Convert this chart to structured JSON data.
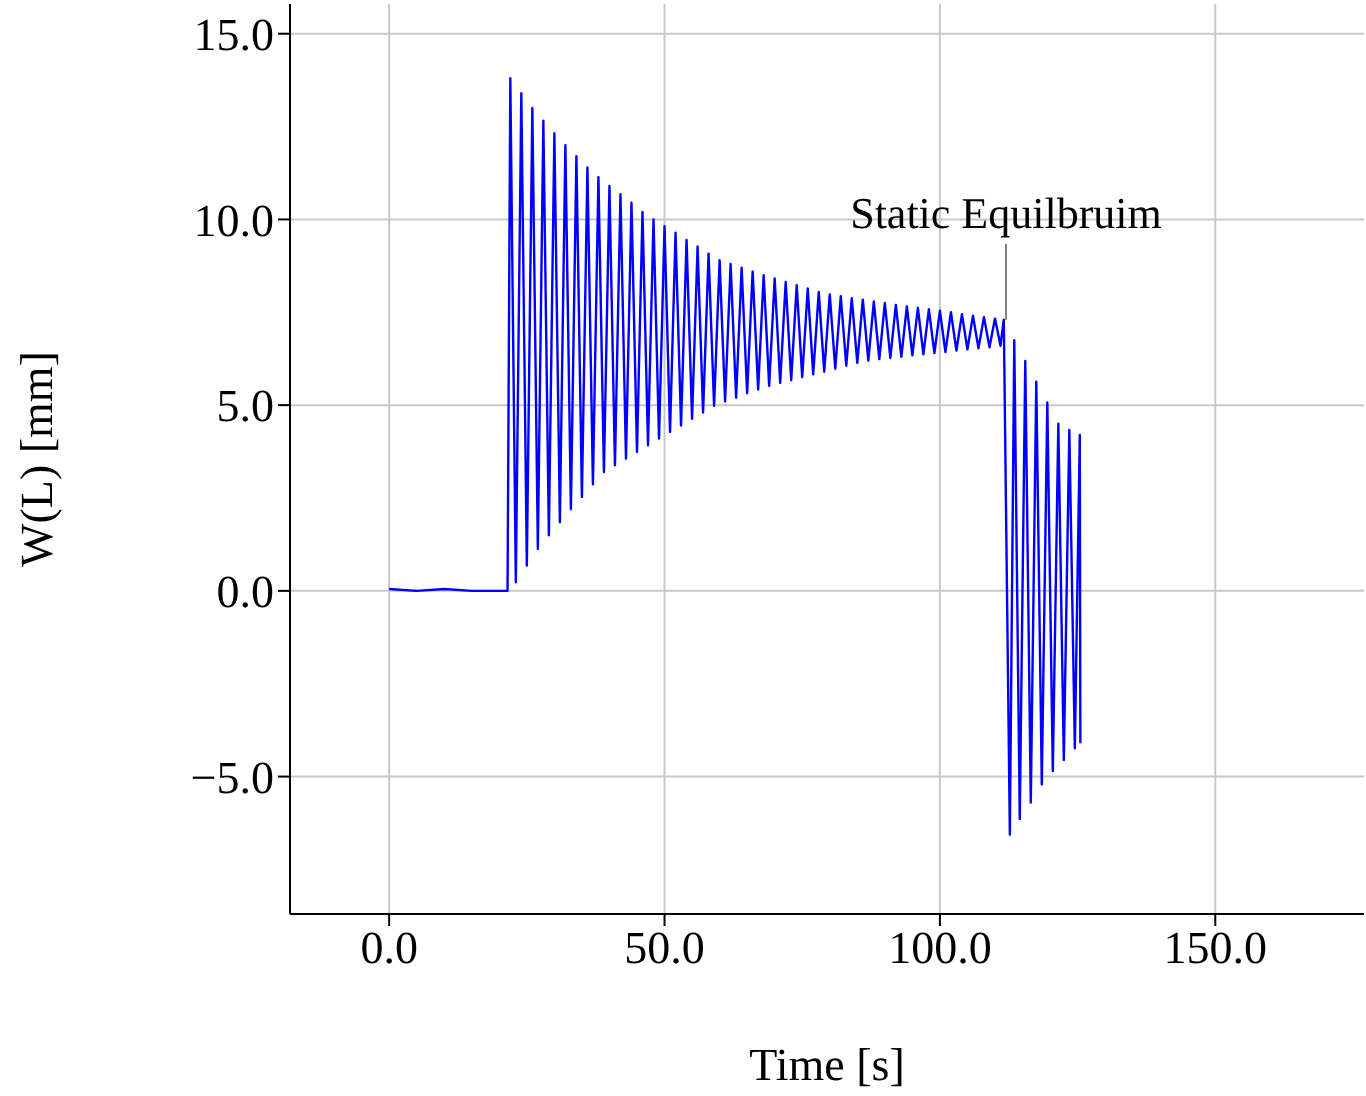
{
  "chart_data": {
    "type": "line",
    "xlabel": "Time [s]",
    "ylabel": "W(L) [mm]",
    "xlim": [
      -18,
      177
    ],
    "ylim": [
      -8.7,
      15.8
    ],
    "xticks": [
      {
        "value": 0,
        "label": "0.0"
      },
      {
        "value": 50,
        "label": "50.0"
      },
      {
        "value": 100,
        "label": "100.0"
      },
      {
        "value": 150,
        "label": "150.0"
      }
    ],
    "yticks": [
      {
        "value": -5,
        "label": "−5.0"
      },
      {
        "value": 0,
        "label": "0.0"
      },
      {
        "value": 5,
        "label": "5.0"
      },
      {
        "value": 10,
        "label": "10.0"
      },
      {
        "value": 15,
        "label": "15.0"
      }
    ],
    "grid": true,
    "marker": "none",
    "line_style": "solid",
    "annotations": [
      {
        "text": "Static Equilbruim",
        "x": 112,
        "y": 7.3
      }
    ],
    "series": [
      {
        "color": "#0000ff",
        "x": [
          0,
          5,
          10,
          15,
          21.5,
          22,
          23,
          24,
          25,
          26,
          27,
          28,
          29,
          30,
          31,
          32,
          33,
          34,
          35,
          36,
          37,
          38,
          39,
          40,
          41,
          42,
          43,
          44,
          45,
          46,
          47,
          48,
          49,
          50,
          51,
          52,
          53,
          54,
          55,
          56,
          57,
          58,
          59,
          60,
          61,
          62,
          63,
          64,
          65,
          66,
          67,
          68,
          69,
          70,
          71,
          72,
          73,
          74,
          75,
          76,
          77,
          78,
          79,
          80,
          81,
          82,
          83,
          84,
          85,
          86,
          87,
          88,
          89,
          90,
          91,
          92,
          93,
          94,
          95,
          96,
          97,
          98,
          99,
          100,
          101,
          102,
          103,
          104,
          105,
          106,
          107,
          108,
          109,
          110,
          111,
          111.6,
          112.7,
          113.5,
          114.5,
          115.5,
          116.5,
          117.5,
          118.5,
          119.5,
          120.5,
          121.5,
          122.5,
          123.5,
          124.5,
          125.4,
          125.5
        ],
        "values": [
          0.05,
          0,
          0.05,
          0,
          0,
          13.8,
          0.23,
          13.4,
          0.68,
          13.0,
          1.13,
          12.66,
          1.5,
          12.32,
          1.85,
          12.0,
          2.2,
          11.7,
          2.53,
          11.4,
          2.87,
          11.14,
          3.2,
          10.9,
          3.38,
          10.68,
          3.56,
          10.45,
          3.74,
          10.2,
          3.92,
          10.0,
          4.1,
          9.82,
          4.28,
          9.64,
          4.45,
          9.45,
          4.63,
          9.27,
          4.8,
          9.08,
          4.98,
          8.9,
          5.1,
          8.8,
          5.2,
          8.7,
          5.32,
          8.6,
          5.42,
          8.5,
          5.52,
          8.41,
          5.6,
          8.32,
          5.67,
          8.23,
          5.75,
          8.14,
          5.83,
          8.05,
          5.9,
          7.98,
          5.98,
          7.93,
          6.06,
          7.88,
          6.14,
          7.84,
          6.2,
          7.79,
          6.24,
          7.75,
          6.27,
          7.7,
          6.3,
          7.66,
          6.34,
          7.62,
          6.37,
          7.58,
          6.4,
          7.54,
          6.43,
          7.5,
          6.47,
          7.45,
          6.5,
          7.41,
          6.53,
          7.37,
          6.56,
          7.33,
          6.6,
          7.3,
          -6.56,
          6.75,
          -6.14,
          6.19,
          -5.7,
          5.63,
          -5.21,
          5.07,
          -4.85,
          4.5,
          -4.55,
          4.33,
          -4.24,
          4.2,
          -4.1
        ]
      }
    ]
  }
}
